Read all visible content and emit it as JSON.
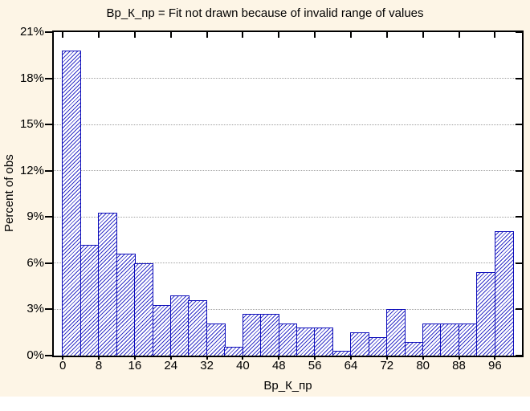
{
  "chart_data": {
    "type": "bar",
    "subtype": "histogram",
    "title": "Вр_К_пр = Fit not drawn because of invalid range of values",
    "xlabel": "Вр_К_пр",
    "ylabel": "Percent of obs",
    "xlim": [
      -2,
      102
    ],
    "ylim": [
      0,
      21
    ],
    "bin_start": 0,
    "bin_width": 4,
    "values_pct": [
      19.8,
      7.2,
      9.3,
      6.6,
      6.0,
      3.3,
      3.9,
      3.6,
      2.1,
      0.6,
      2.7,
      2.7,
      2.1,
      1.8,
      1.8,
      0.3,
      1.5,
      1.2,
      3.0,
      0.9,
      2.1,
      2.1,
      2.1,
      5.4,
      8.1
    ],
    "x_ticks": [
      0,
      8,
      16,
      24,
      32,
      40,
      48,
      56,
      64,
      72,
      80,
      88,
      96
    ],
    "y_ticks": [
      0,
      3,
      6,
      9,
      12,
      15,
      18,
      21
    ],
    "y_tick_suffix": "%",
    "grid": "horizontal-dotted",
    "legend": "none",
    "bar_style": "blue-diagonal-hatch"
  },
  "colors": {
    "canvas_bg": "#FDF5E6",
    "plot_bg": "#FFFFFF",
    "frame": "#000000",
    "gridline": "#A0A0A0",
    "bar_edge": "#0D0DBA",
    "bar_hatch": "#3232C8",
    "text": "#000000"
  }
}
